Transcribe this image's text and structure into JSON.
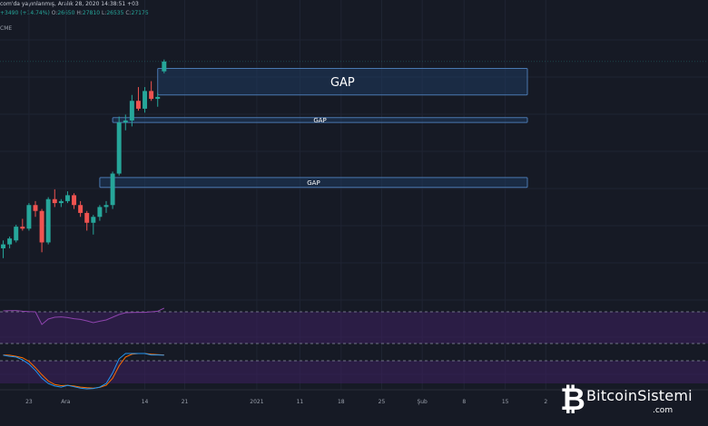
{
  "header": {
    "line1": "com'da yayınlanmış, Aralık 28, 2020 14:38:51 +03",
    "change": "+3490 (+14.74%)",
    "o_label": "O:",
    "o_value": "26650",
    "h_label": "H:",
    "h_value": "27810",
    "l_label": "L:",
    "l_value": "26535",
    "c_label": "C:",
    "c_value": "27175",
    "exchange": "CME"
  },
  "colors": {
    "background": "#161a25",
    "up": "#26a69a",
    "down": "#ef5350",
    "gap_fill": "#1f3a5f",
    "gap_border": "#4a78b0",
    "rsi_line": "#8e44ad",
    "stoch_k": "#2196f3",
    "stoch_d": "#ff6d00",
    "band_fill": "#3b1f5c"
  },
  "chart_data": {
    "type": "candlestick",
    "candles": [
      {
        "o": 0.04,
        "h": 0.08,
        "l": -0.01,
        "c": 0.06
      },
      {
        "o": 0.06,
        "h": 0.1,
        "l": 0.04,
        "c": 0.09
      },
      {
        "o": 0.08,
        "h": 0.16,
        "l": 0.07,
        "c": 0.15
      },
      {
        "o": 0.15,
        "h": 0.19,
        "l": 0.13,
        "c": 0.14
      },
      {
        "o": 0.14,
        "h": 0.27,
        "l": 0.13,
        "c": 0.26
      },
      {
        "o": 0.26,
        "h": 0.28,
        "l": 0.2,
        "c": 0.23
      },
      {
        "o": 0.23,
        "h": 0.24,
        "l": 0.02,
        "c": 0.07
      },
      {
        "o": 0.07,
        "h": 0.3,
        "l": 0.06,
        "c": 0.29
      },
      {
        "o": 0.29,
        "h": 0.34,
        "l": 0.25,
        "c": 0.27
      },
      {
        "o": 0.27,
        "h": 0.29,
        "l": 0.25,
        "c": 0.28
      },
      {
        "o": 0.28,
        "h": 0.33,
        "l": 0.27,
        "c": 0.31
      },
      {
        "o": 0.31,
        "h": 0.32,
        "l": 0.24,
        "c": 0.26
      },
      {
        "o": 0.26,
        "h": 0.28,
        "l": 0.2,
        "c": 0.22
      },
      {
        "o": 0.22,
        "h": 0.23,
        "l": 0.13,
        "c": 0.17
      },
      {
        "o": 0.17,
        "h": 0.21,
        "l": 0.11,
        "c": 0.2
      },
      {
        "o": 0.2,
        "h": 0.26,
        "l": 0.18,
        "c": 0.25
      },
      {
        "o": 0.25,
        "h": 0.28,
        "l": 0.22,
        "c": 0.26
      },
      {
        "o": 0.26,
        "h": 0.43,
        "l": 0.24,
        "c": 0.42
      },
      {
        "o": 0.42,
        "h": 0.71,
        "l": 0.41,
        "c": 0.68
      },
      {
        "o": 0.68,
        "h": 0.72,
        "l": 0.64,
        "c": 0.69
      },
      {
        "o": 0.69,
        "h": 0.82,
        "l": 0.66,
        "c": 0.79
      },
      {
        "o": 0.79,
        "h": 0.86,
        "l": 0.74,
        "c": 0.75
      },
      {
        "o": 0.75,
        "h": 0.86,
        "l": 0.73,
        "c": 0.84
      },
      {
        "o": 0.84,
        "h": 0.89,
        "l": 0.79,
        "c": 0.8
      },
      {
        "o": 0.8,
        "h": 0.83,
        "l": 0.76,
        "c": 0.81
      },
      {
        "o": 0.94,
        "h": 1.0,
        "l": 0.93,
        "c": 0.99
      }
    ],
    "gaps": [
      {
        "label": "GAP",
        "top": 0.955,
        "bottom": 0.82,
        "from_index": 24.5
      },
      {
        "label": "GAP",
        "top": 0.705,
        "bottom": 0.68,
        "from_index": 17.5
      },
      {
        "label": "GAP",
        "top": 0.4,
        "bottom": 0.35,
        "from_index": 15.5
      }
    ],
    "price_range": [
      -0.08,
      1.1
    ],
    "rsi": [
      0.95,
      0.96,
      0.97,
      0.93,
      0.91,
      0.9,
      0.2,
      0.5,
      0.6,
      0.62,
      0.58,
      0.52,
      0.48,
      0.4,
      0.3,
      0.38,
      0.45,
      0.6,
      0.75,
      0.85,
      0.86,
      0.87,
      0.87,
      0.9,
      0.93,
      1.1
    ],
    "stoch_k": [
      0.95,
      0.92,
      0.9,
      0.82,
      0.7,
      0.52,
      0.3,
      0.15,
      0.08,
      0.05,
      0.1,
      0.06,
      0.02,
      0.0,
      0.01,
      0.05,
      0.15,
      0.45,
      0.85,
      1.0,
      1.0,
      1.0,
      1.0,
      0.96,
      0.96,
      0.95
    ],
    "stoch_d": [
      0.96,
      0.95,
      0.92,
      0.88,
      0.78,
      0.6,
      0.4,
      0.22,
      0.12,
      0.09,
      0.1,
      0.08,
      0.05,
      0.03,
      0.02,
      0.04,
      0.1,
      0.3,
      0.65,
      0.9,
      0.98,
      1.0,
      1.0,
      0.98,
      0.97,
      0.96
    ],
    "x_ticks": [
      {
        "label": "23",
        "pos": 4.5
      },
      {
        "label": "Ara",
        "pos": 10.2
      },
      {
        "label": "14",
        "pos": 22.5
      },
      {
        "label": "21",
        "pos": 28.7
      },
      {
        "label": "2021",
        "pos": 39.9
      },
      {
        "label": "11",
        "pos": 46.6
      },
      {
        "label": "18",
        "pos": 53.0
      },
      {
        "label": "25",
        "pos": 59.3
      },
      {
        "label": "Şub",
        "pos": 65.6
      },
      {
        "label": "8",
        "pos": 72.1
      },
      {
        "label": "15",
        "pos": 78.5
      },
      {
        "label": "2",
        "pos": 84.8
      }
    ],
    "total_slots": 110
  },
  "logo": {
    "mark": "₿",
    "name": "BitcoinSistemi",
    "domain": ".com"
  }
}
